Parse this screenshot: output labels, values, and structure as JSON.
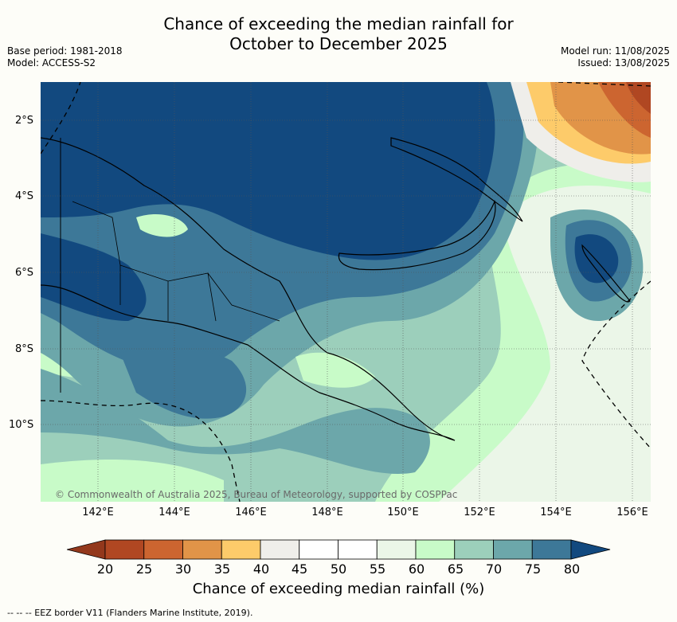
{
  "title_line1": "Chance of exceeding the median rainfall for",
  "title_line2": "October to December 2025",
  "base_period": "Base period: 1981-2018",
  "model": "Model: ACCESS-S2",
  "model_run": "Model run: 11/08/2025",
  "issued": "Issued: 13/08/2025",
  "lat_labels": [
    "2°S",
    "4°S",
    "6°S",
    "8°S",
    "10°S"
  ],
  "lon_labels": [
    "142°E",
    "144°E",
    "146°E",
    "148°E",
    "150°E",
    "152°E",
    "154°E",
    "156°E"
  ],
  "colorbar": {
    "ticks": [
      "20",
      "25",
      "30",
      "35",
      "40",
      "45",
      "50",
      "55",
      "60",
      "65",
      "70",
      "75",
      "80"
    ],
    "colors": [
      "#b04722",
      "#cc6530",
      "#e19448",
      "#fdcb6a",
      "#efeeea",
      "#ffffff",
      "#ffffff",
      "#ebf6e8",
      "#c8fbc8",
      "#9ccfbb",
      "#6ca7aa",
      "#3d7898"
    ],
    "low_color": "#93381c",
    "high_color": "#12497f",
    "label": "Chance of exceeding median rainfall (%)"
  },
  "copyright": "© Commonwealth of Australia 2025, Bureau of Meteorology, supported by COSPPac",
  "eez_note": "-- -- -- EEZ border V11 (Flanders Marine Institute, 2019)."
}
